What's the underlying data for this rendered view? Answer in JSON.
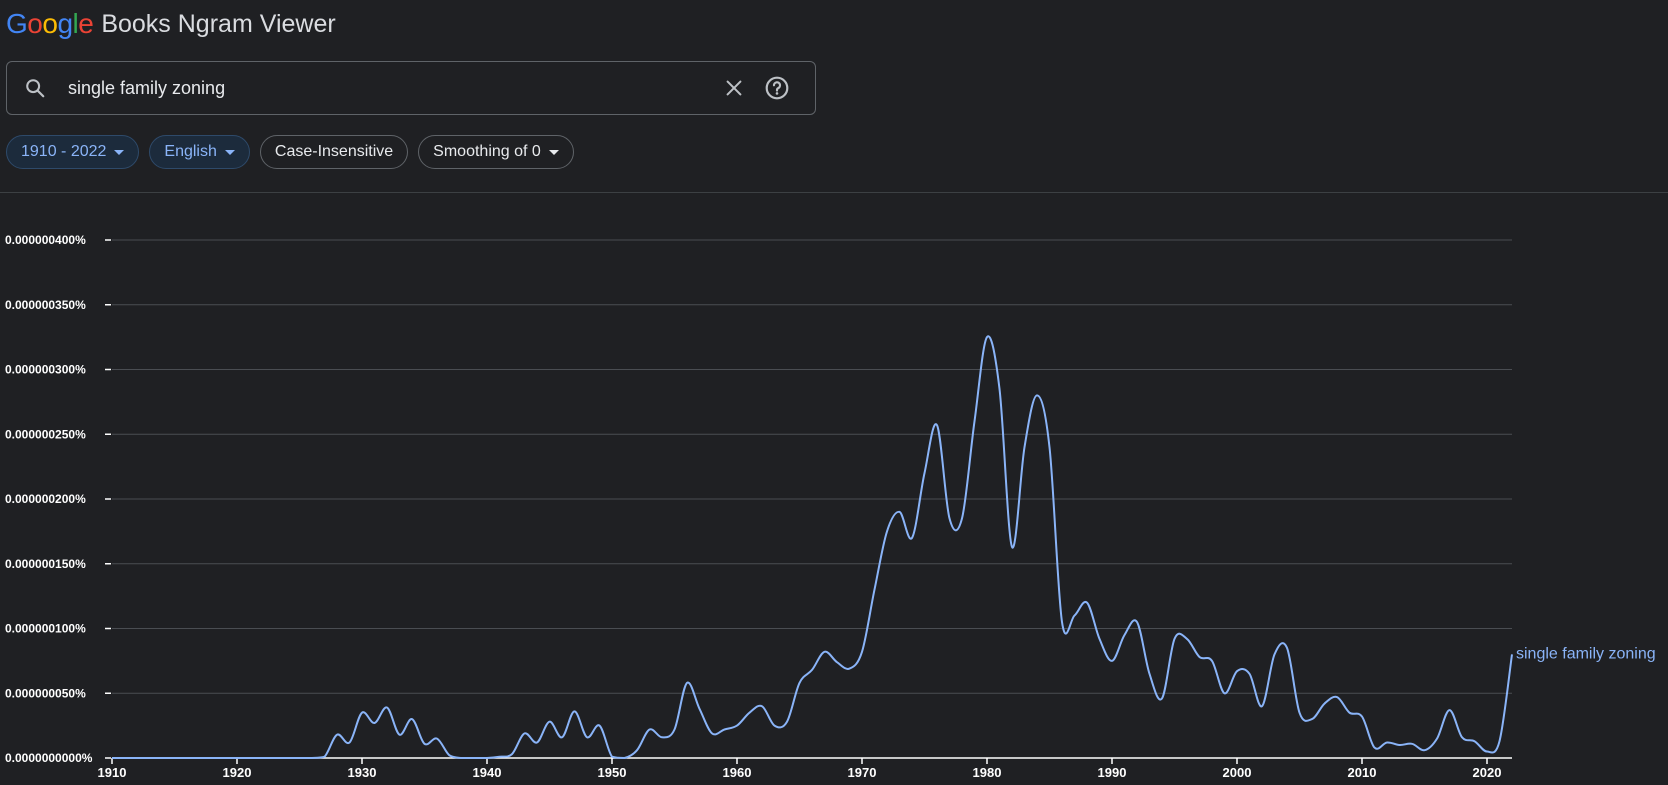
{
  "header": {
    "logo_letters": [
      {
        "ch": "G",
        "color": "#4285f4"
      },
      {
        "ch": "o",
        "color": "#ea4335"
      },
      {
        "ch": "o",
        "color": "#fbbc05"
      },
      {
        "ch": "g",
        "color": "#4285f4"
      },
      {
        "ch": "l",
        "color": "#34a853"
      },
      {
        "ch": "e",
        "color": "#ea4335"
      }
    ],
    "app_title": "Books Ngram Viewer"
  },
  "search": {
    "value": "single family zoning",
    "icon": "search-icon"
  },
  "filters": {
    "year_range": "1910 - 2022",
    "corpus": "English",
    "case": "Case-Insensitive",
    "smoothing": "Smoothing of 0"
  },
  "chart_data": {
    "type": "line",
    "title": "",
    "xlabel": "",
    "ylabel": "",
    "xlim": [
      1910,
      2022
    ],
    "ylim": [
      0,
      4e-07
    ],
    "x_ticks": [
      {
        "value": 1910,
        "label": "1910"
      },
      {
        "value": 1920,
        "label": "1920"
      },
      {
        "value": 1930,
        "label": "1930"
      },
      {
        "value": 1940,
        "label": "1940"
      },
      {
        "value": 1950,
        "label": "1950"
      },
      {
        "value": 1960,
        "label": "1960"
      },
      {
        "value": 1970,
        "label": "1970"
      },
      {
        "value": 1980,
        "label": "1980"
      },
      {
        "value": 1990,
        "label": "1990"
      },
      {
        "value": 2000,
        "label": "2000"
      },
      {
        "value": 2010,
        "label": "2010"
      },
      {
        "value": 2020,
        "label": "2020"
      }
    ],
    "y_ticks": [
      {
        "value": 0,
        "label": "0.0000000000%"
      },
      {
        "value": 5e-08,
        "label": "0.000000050%"
      },
      {
        "value": 1e-07,
        "label": "0.000000100%"
      },
      {
        "value": 1.5e-07,
        "label": "0.000000150%"
      },
      {
        "value": 2e-07,
        "label": "0.000000200%"
      },
      {
        "value": 2.5e-07,
        "label": "0.000000250%"
      },
      {
        "value": 3e-07,
        "label": "0.000000300%"
      },
      {
        "value": 3.5e-07,
        "label": "0.000000350%"
      },
      {
        "value": 4e-07,
        "label": "0.000000400%"
      }
    ],
    "grid": true,
    "series": [
      {
        "name": "single family zoning",
        "color": "#8ab4f8",
        "x": [
          1910,
          1911,
          1912,
          1913,
          1914,
          1915,
          1916,
          1917,
          1918,
          1919,
          1920,
          1921,
          1922,
          1923,
          1924,
          1925,
          1926,
          1927,
          1928,
          1929,
          1930,
          1931,
          1932,
          1933,
          1934,
          1935,
          1936,
          1937,
          1938,
          1939,
          1940,
          1941,
          1942,
          1943,
          1944,
          1945,
          1946,
          1947,
          1948,
          1949,
          1950,
          1951,
          1952,
          1953,
          1954,
          1955,
          1956,
          1957,
          1958,
          1959,
          1960,
          1961,
          1962,
          1963,
          1964,
          1965,
          1966,
          1967,
          1968,
          1969,
          1970,
          1971,
          1972,
          1973,
          1974,
          1975,
          1976,
          1977,
          1978,
          1979,
          1980,
          1981,
          1982,
          1983,
          1984,
          1985,
          1986,
          1987,
          1988,
          1989,
          1990,
          1991,
          1992,
          1993,
          1994,
          1995,
          1996,
          1997,
          1998,
          1999,
          2000,
          2001,
          2002,
          2003,
          2004,
          2005,
          2006,
          2007,
          2008,
          2009,
          2010,
          2011,
          2012,
          2013,
          2014,
          2015,
          2016,
          2017,
          2018,
          2019,
          2020,
          2021,
          2022
        ],
        "y": [
          0,
          0,
          0,
          0,
          0,
          0,
          0,
          0,
          0,
          0,
          0,
          0,
          0,
          0,
          0,
          0,
          0,
          1e-09,
          1.8e-08,
          1.2e-08,
          3.5e-08,
          2.7e-08,
          3.9e-08,
          1.8e-08,
          3e-08,
          1.1e-08,
          1.5e-08,
          2e-09,
          0,
          0,
          0,
          1e-09,
          3e-09,
          1.9e-08,
          1.2e-08,
          2.8e-08,
          1.6e-08,
          3.6e-08,
          1.6e-08,
          2.5e-08,
          1e-09,
          0,
          6e-09,
          2.2e-08,
          1.6e-08,
          2.2e-08,
          5.8e-08,
          3.8e-08,
          1.9e-08,
          2.2e-08,
          2.5e-08,
          3.5e-08,
          4e-08,
          2.5e-08,
          2.8e-08,
          5.8e-08,
          6.8e-08,
          8.2e-08,
          7.4e-08,
          6.9e-08,
          8.2e-08,
          1.3e-07,
          1.75e-07,
          1.9e-07,
          1.7e-07,
          2.2e-07,
          2.57e-07,
          1.85e-07,
          1.85e-07,
          2.6e-07,
          3.25e-07,
          2.85e-07,
          1.63e-07,
          2.4e-07,
          2.8e-07,
          2.4e-07,
          1.05e-07,
          1.1e-07,
          1.2e-07,
          9.2e-08,
          7.5e-08,
          9.5e-08,
          1.05e-07,
          6.5e-08,
          4.6e-08,
          9.2e-08,
          9.2e-08,
          7.8e-08,
          7.5e-08,
          5e-08,
          6.7e-08,
          6.5e-08,
          4e-08,
          8e-08,
          8.5e-08,
          3.5e-08,
          3e-08,
          4.2e-08,
          4.7e-08,
          3.5e-08,
          3.2e-08,
          8e-09,
          1.2e-08,
          1e-08,
          1.1e-08,
          6e-09,
          1.5e-08,
          3.7e-08,
          1.6e-08,
          1.3e-08,
          5e-09,
          1.3e-08,
          8e-08
        ]
      }
    ]
  }
}
